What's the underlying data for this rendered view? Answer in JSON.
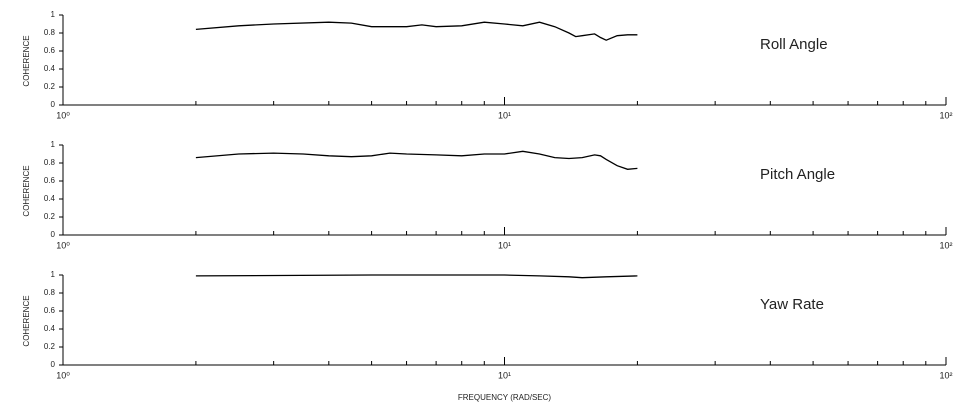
{
  "chart_data": [
    {
      "type": "line",
      "annotation": "Roll Angle",
      "ylabel": "COHERENCE",
      "color": "#000000",
      "xlog": true,
      "x": [
        2,
        2.5,
        3,
        4,
        4.5,
        5,
        6,
        6.5,
        7,
        8,
        9,
        10,
        11,
        12,
        13,
        14,
        14.5,
        15,
        16,
        16.5,
        17,
        18,
        19,
        20
      ],
      "values": [
        0.84,
        0.88,
        0.9,
        0.92,
        0.91,
        0.87,
        0.87,
        0.89,
        0.87,
        0.88,
        0.92,
        0.9,
        0.88,
        0.92,
        0.87,
        0.8,
        0.76,
        0.77,
        0.79,
        0.75,
        0.72,
        0.77,
        0.78,
        0.78
      ],
      "xlim": [
        1,
        100
      ],
      "xticks": [
        {
          "value": 1,
          "label": "10⁰"
        },
        {
          "value": 10,
          "label": "10¹"
        },
        {
          "value": 100,
          "label": "10²"
        }
      ],
      "xminorticks": [
        2,
        3,
        4,
        5,
        6,
        7,
        8,
        9,
        20,
        30,
        40,
        50,
        60,
        70,
        80,
        90
      ],
      "ylim": [
        0,
        1
      ],
      "yticks": [
        0,
        0.2,
        0.4,
        0.6,
        0.8,
        1
      ]
    },
    {
      "type": "line",
      "annotation": "Pitch Angle",
      "ylabel": "COHERENCE",
      "color": "#000000",
      "xlog": true,
      "x": [
        2,
        2.5,
        3,
        3.5,
        4,
        4.5,
        5,
        5.5,
        6,
        7,
        8,
        9,
        10,
        11,
        12,
        13,
        14,
        15,
        16,
        16.5,
        17,
        18,
        19,
        20
      ],
      "values": [
        0.86,
        0.9,
        0.91,
        0.9,
        0.88,
        0.87,
        0.88,
        0.91,
        0.9,
        0.89,
        0.88,
        0.9,
        0.9,
        0.93,
        0.9,
        0.86,
        0.85,
        0.86,
        0.89,
        0.88,
        0.84,
        0.77,
        0.73,
        0.74
      ],
      "xlim": [
        1,
        100
      ],
      "xticks": [
        {
          "value": 1,
          "label": "10⁰"
        },
        {
          "value": 10,
          "label": "10¹"
        },
        {
          "value": 100,
          "label": "10²"
        }
      ],
      "xminorticks": [
        2,
        3,
        4,
        5,
        6,
        7,
        8,
        9,
        20,
        30,
        40,
        50,
        60,
        70,
        80,
        90
      ],
      "ylim": [
        0,
        1
      ],
      "yticks": [
        0,
        0.2,
        0.4,
        0.6,
        0.8,
        1
      ]
    },
    {
      "type": "line",
      "annotation": "Yaw Rate",
      "ylabel": "COHERENCE",
      "xlabel": "FREQUENCY (RAD/SEC)",
      "color": "#000000",
      "xlog": true,
      "x": [
        2,
        5,
        10,
        12,
        14,
        15,
        17,
        20
      ],
      "values": [
        0.99,
        1,
        1,
        0.99,
        0.98,
        0.97,
        0.98,
        0.99
      ],
      "xlim": [
        1,
        100
      ],
      "xticks": [
        {
          "value": 1,
          "label": "10⁰"
        },
        {
          "value": 10,
          "label": "10¹"
        },
        {
          "value": 100,
          "label": "10²"
        }
      ],
      "xminorticks": [
        2,
        3,
        4,
        5,
        6,
        7,
        8,
        9,
        20,
        30,
        40,
        50,
        60,
        70,
        80,
        90
      ],
      "ylim": [
        0,
        1
      ],
      "yticks": [
        0,
        0.2,
        0.4,
        0.6,
        0.8,
        1
      ]
    }
  ]
}
